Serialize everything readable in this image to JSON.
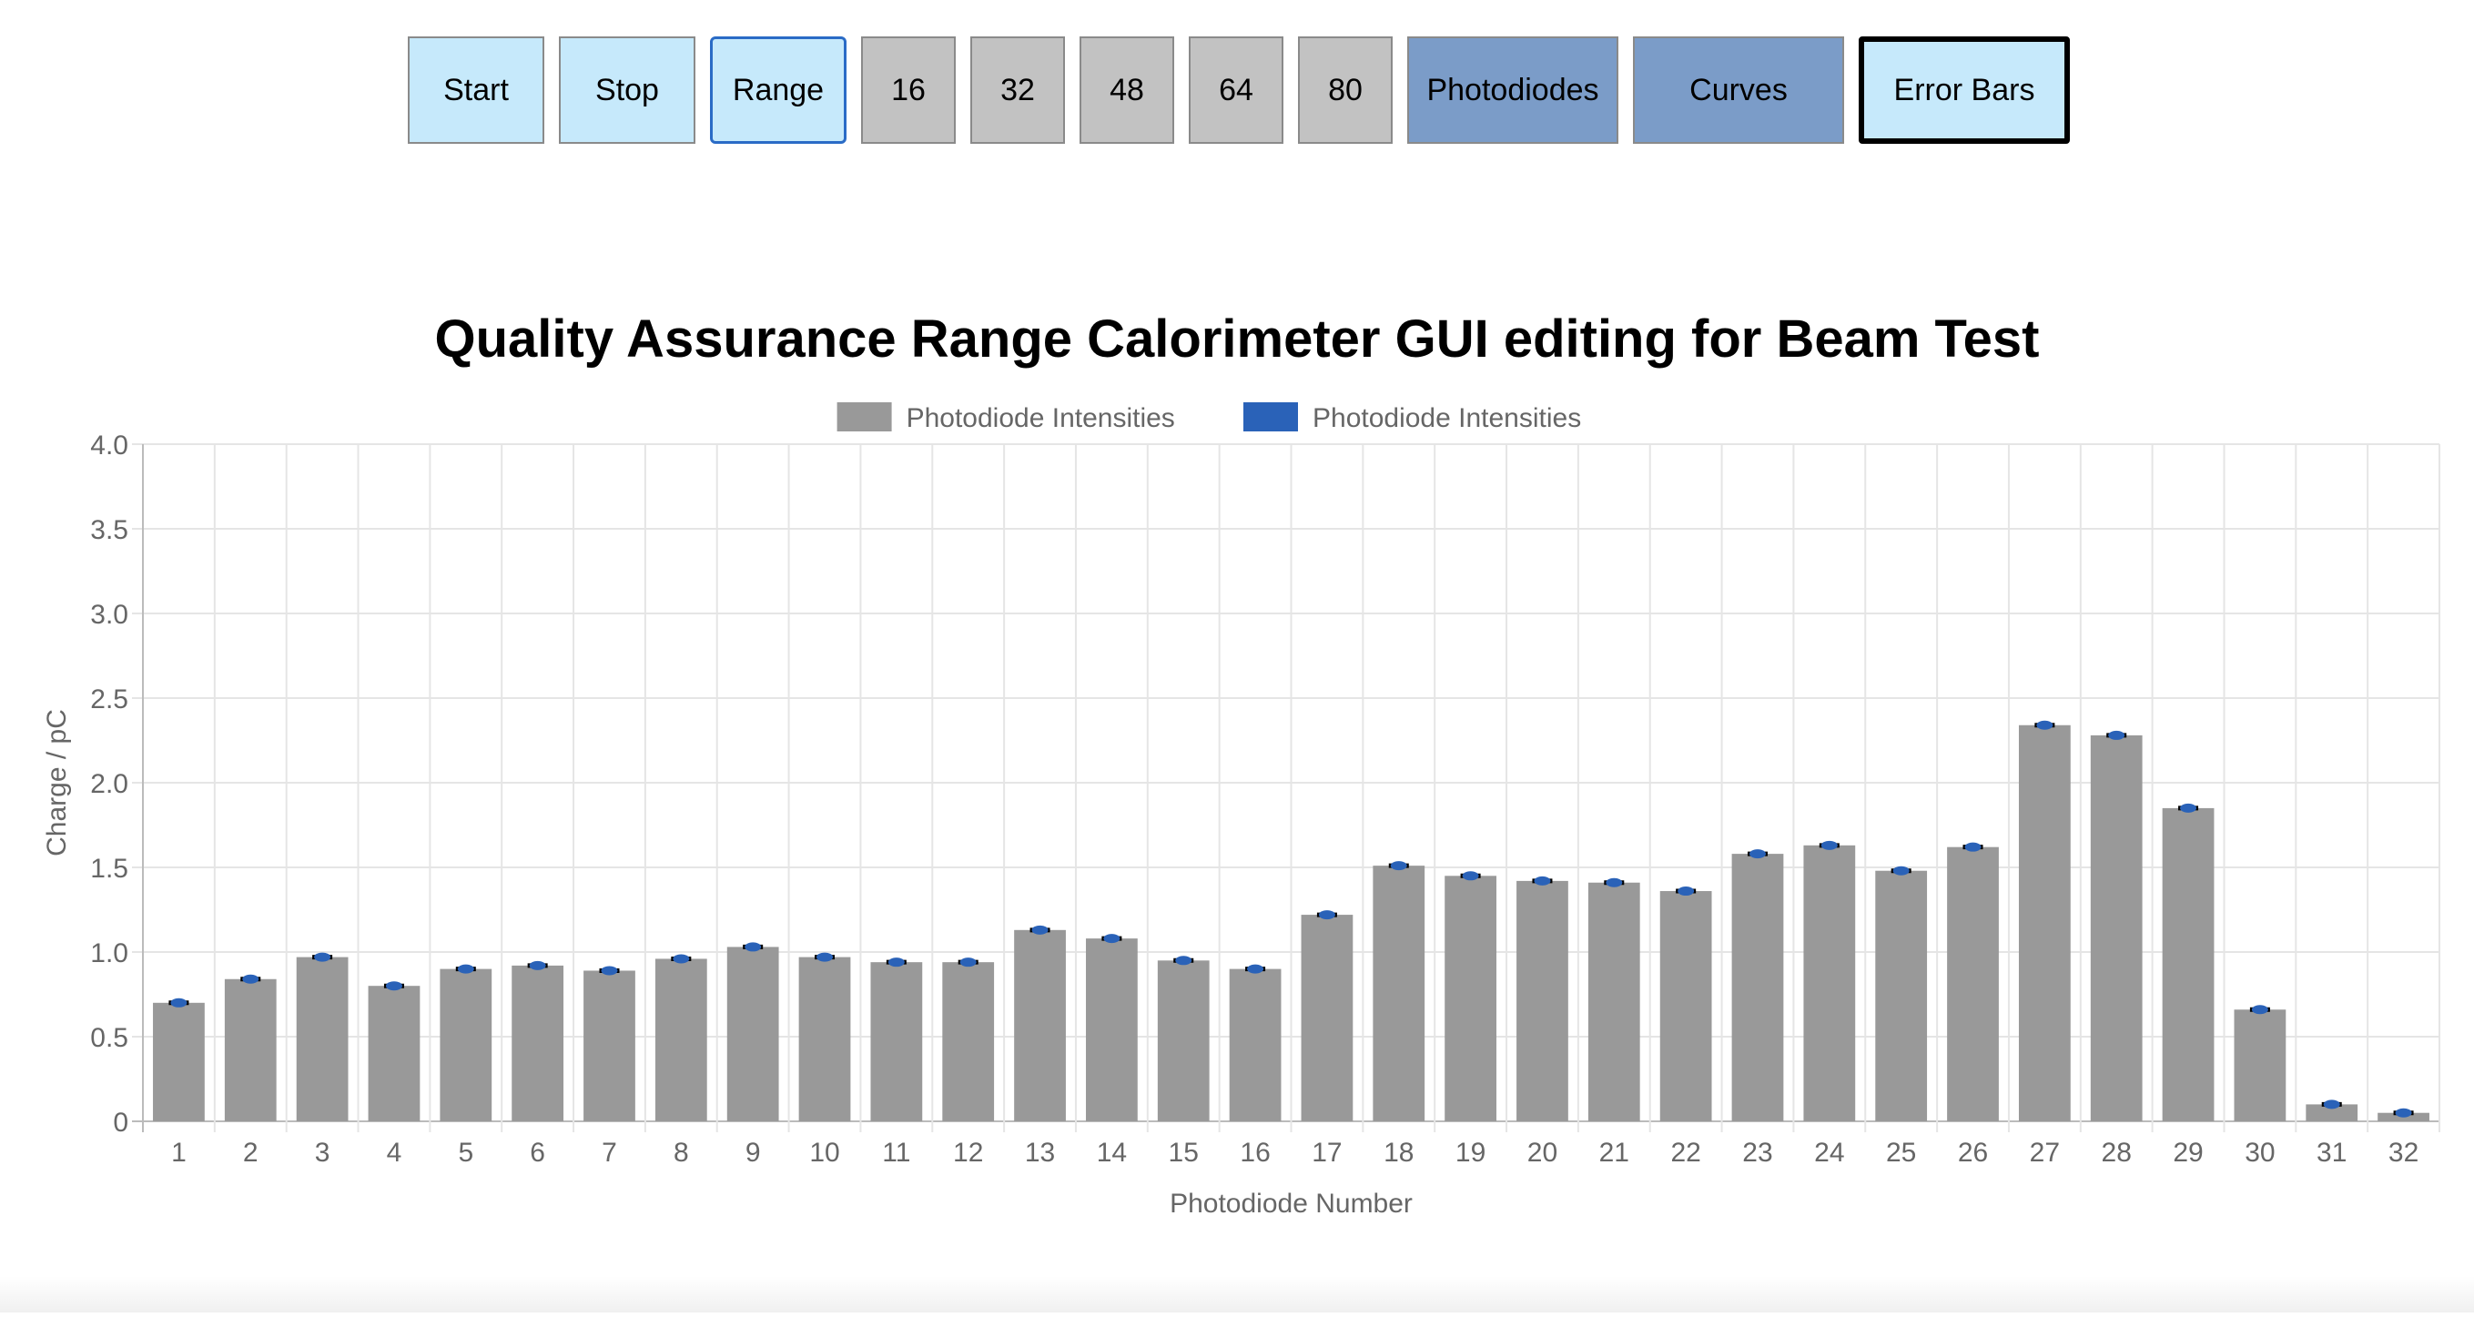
{
  "toolbar": {
    "buttons": [
      {
        "label": "Start",
        "style": "light"
      },
      {
        "label": "Stop",
        "style": "light"
      },
      {
        "label": "Range",
        "style": "light"
      },
      {
        "label": "16",
        "style": "gray"
      },
      {
        "label": "32",
        "style": "gray"
      },
      {
        "label": "48",
        "style": "gray"
      },
      {
        "label": "64",
        "style": "gray"
      },
      {
        "label": "80",
        "style": "gray"
      },
      {
        "label": "Photodiodes",
        "style": "blue"
      },
      {
        "label": "Curves",
        "style": "blue"
      },
      {
        "label": "Error Bars",
        "style": "light"
      }
    ]
  },
  "colors": {
    "bar": "#999999",
    "error_marker": "#2a62b8",
    "legend_blue": "#2a62b8",
    "grid": "#e5e5e5"
  },
  "chart_data": {
    "type": "bar",
    "title": "Quality Assurance Range Calorimeter GUI editing for Beam Test",
    "xlabel": "Photodiode Number",
    "ylabel": "Charge / pC",
    "ylim": [
      0,
      4.0
    ],
    "y_ticks": [
      "0",
      "0.5",
      "1.0",
      "1.5",
      "2.0",
      "2.5",
      "3.0",
      "3.5",
      "4.0"
    ],
    "grid": true,
    "legend_position": "top",
    "legend": [
      {
        "name": "Photodiode Intensities",
        "color": "#999999"
      },
      {
        "name": "Photodiode Intensities",
        "color": "#2a62b8"
      }
    ],
    "categories": [
      "1",
      "2",
      "3",
      "4",
      "5",
      "6",
      "7",
      "8",
      "9",
      "10",
      "11",
      "12",
      "13",
      "14",
      "15",
      "16",
      "17",
      "18",
      "19",
      "20",
      "21",
      "22",
      "23",
      "24",
      "25",
      "26",
      "27",
      "28",
      "29",
      "30",
      "31",
      "32"
    ],
    "values": [
      0.7,
      0.84,
      0.97,
      0.8,
      0.9,
      0.92,
      0.89,
      0.96,
      1.03,
      0.97,
      0.94,
      0.94,
      1.13,
      1.08,
      0.95,
      0.9,
      1.22,
      1.51,
      1.45,
      1.42,
      1.41,
      1.36,
      1.58,
      1.63,
      1.48,
      1.62,
      2.34,
      2.28,
      1.85,
      0.66,
      0.1,
      0.05
    ]
  }
}
